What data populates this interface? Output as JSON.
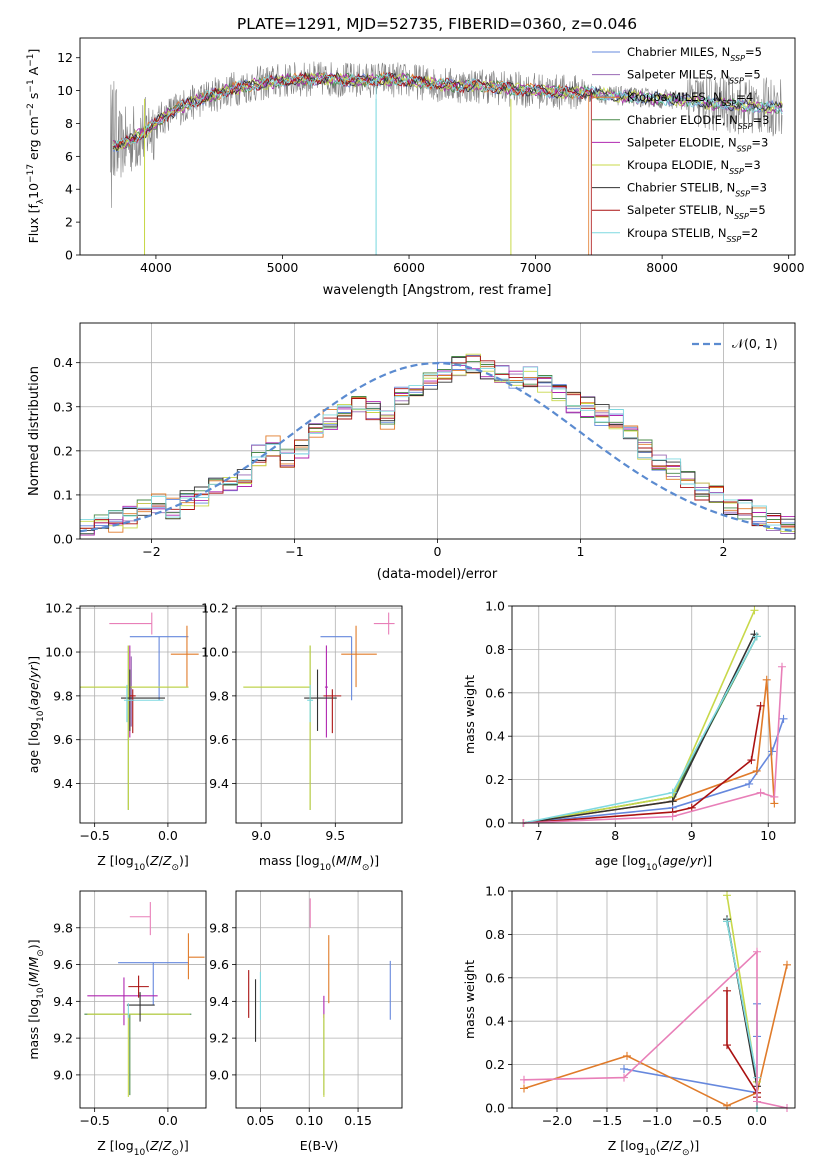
{
  "figure": {
    "title": "PLATE=1291, MJD=52735, FIBERID=0360, z=0.046"
  },
  "colors": [
    "#6688dd",
    "#9a6ab5",
    "#e07b2a",
    "#4a8a4a",
    "#b027b0",
    "#c8d84a",
    "#333333",
    "#aa1111",
    "#7fd9e0"
  ],
  "chart_data": [
    {
      "id": "spectrum",
      "type": "line",
      "title": "PLATE=1291, MJD=52735, FIBERID=0360, z=0.046",
      "xlabel": "wavelength [Angstrom, rest frame]",
      "ylabel": "Flux [f_λ 10^-17 erg cm^-2 s^-1 A^-1]",
      "xlim": [
        3400,
        9050
      ],
      "ylim": [
        0,
        13.2
      ],
      "xticks": [
        4000,
        5000,
        6000,
        7000,
        8000,
        9000
      ],
      "yticks": [
        0,
        2,
        4,
        6,
        8,
        10,
        12
      ],
      "grid": false,
      "legend_position": "right",
      "observed_series_color": "#808080",
      "continuum_anchors": {
        "x": [
          3640,
          3700,
          3800,
          3900,
          4000,
          4100,
          4200,
          4400,
          4600,
          4800,
          5000,
          5200,
          5400,
          5600,
          5800,
          6000,
          6200,
          6400,
          6600,
          6800,
          7000,
          7200,
          7400,
          7600,
          7800,
          8000,
          8200,
          8400,
          8600,
          8800,
          8950
        ],
        "y": [
          6.8,
          6.6,
          7.0,
          7.4,
          8.0,
          8.6,
          9.0,
          9.6,
          10.1,
          10.4,
          10.6,
          10.7,
          10.7,
          10.6,
          10.7,
          10.6,
          10.4,
          10.3,
          10.3,
          10.1,
          10.0,
          9.9,
          9.9,
          9.7,
          9.6,
          9.5,
          9.4,
          9.2,
          9.1,
          9.0,
          9.0
        ]
      },
      "series": [
        {
          "name": "Chabrier MILES",
          "nssp": "5"
        },
        {
          "name": "Salpeter MILES",
          "nssp": "5"
        },
        {
          "name": "Kroupa MILES",
          "nssp": "4"
        },
        {
          "name": "Chabrier ELODIE",
          "nssp": "3"
        },
        {
          "name": "Salpeter ELODIE",
          "nssp": "3"
        },
        {
          "name": "Kroupa ELODIE",
          "nssp": "3"
        },
        {
          "name": "Chabrier STELIB",
          "nssp": "3"
        },
        {
          "name": "Salpeter STELIB",
          "nssp": "5"
        },
        {
          "name": "Kroupa STELIB",
          "nssp": "2"
        }
      ],
      "legend_suffix": "N",
      "legend_sub": "SSP"
    },
    {
      "id": "residuals",
      "type": "line",
      "xlabel": "(data-model)/error",
      "ylabel": "Normed distribution",
      "xlim": [
        -2.5,
        2.5
      ],
      "ylim": [
        0,
        0.49
      ],
      "xticks": [
        -2,
        -1,
        0,
        1,
        2
      ],
      "yticks": [
        0.0,
        0.1,
        0.2,
        0.3,
        0.4
      ],
      "grid": true,
      "legend": "𝒩(0, 1)",
      "legend_position": "top-right",
      "reference_curve": {
        "mean": 0,
        "sigma": 1,
        "color": "#5b8bd0"
      },
      "histogram": {
        "bin_start": -2.5,
        "bin_width": 0.1,
        "mean_heights": [
          0.02,
          0.03,
          0.04,
          0.05,
          0.07,
          0.08,
          0.07,
          0.09,
          0.1,
          0.12,
          0.13,
          0.14,
          0.19,
          0.21,
          0.18,
          0.2,
          0.25,
          0.27,
          0.28,
          0.3,
          0.29,
          0.27,
          0.32,
          0.33,
          0.36,
          0.38,
          0.39,
          0.4,
          0.38,
          0.38,
          0.36,
          0.37,
          0.35,
          0.33,
          0.31,
          0.3,
          0.28,
          0.27,
          0.25,
          0.2,
          0.18,
          0.16,
          0.14,
          0.11,
          0.1,
          0.08,
          0.07,
          0.05,
          0.04,
          0.03
        ]
      }
    },
    {
      "id": "age-vs-z",
      "type": "scatter",
      "xlabel": "Z [log10(Z/Z⊙)]",
      "ylabel": "age  [log10(age/yr)]",
      "xlim": [
        -0.6,
        0.26
      ],
      "ylim": [
        9.22,
        10.21
      ],
      "xticks": [
        -0.5,
        0.0
      ],
      "yticks": [
        9.4,
        9.6,
        9.8,
        10.0,
        10.2
      ],
      "grid": true,
      "points": [
        {
          "series": 0,
          "x": -0.06,
          "xerr": [
            0.2,
            0.2
          ],
          "y": 10.07,
          "yerr": [
            0.29,
            0.0
          ]
        },
        {
          "series": 1,
          "x": -0.25,
          "xerr": [
            0.02,
            0.02
          ],
          "y": 9.78,
          "yerr": [
            0.12,
            0.2
          ]
        },
        {
          "series": 2,
          "x": 0.13,
          "xerr": [
            0.11,
            0.08
          ],
          "y": 9.99,
          "yerr": [
            0.15,
            0.13
          ]
        },
        {
          "series": 3,
          "x": -0.27,
          "xerr": [
            0.33,
            0.41
          ],
          "y": 9.84,
          "yerr": [
            0.56,
            0.19
          ]
        },
        {
          "series": 4,
          "x": -0.26,
          "xerr": [
            0.01,
            0.01
          ],
          "y": 9.84,
          "yerr": [
            0.23,
            0.19
          ]
        },
        {
          "series": 5,
          "x": -0.27,
          "xerr": [
            0.33,
            0.41
          ],
          "y": 9.84,
          "yerr": [
            0.56,
            0.19
          ]
        },
        {
          "series": 6,
          "x": -0.26,
          "xerr": [
            0.06,
            0.24
          ],
          "y": 9.79,
          "yerr": [
            0.15,
            0.13
          ]
        },
        {
          "series": 7,
          "x": -0.24,
          "xerr": [
            0.02,
            0.02
          ],
          "y": 9.8,
          "yerr": [
            0.17,
            0.03
          ]
        },
        {
          "series": 8,
          "x": -0.28,
          "xerr": [
            0.02,
            0.25
          ],
          "y": 9.78,
          "yerr": [
            0.1,
            0.07
          ]
        },
        {
          "series": 9,
          "x": -0.11,
          "xerr": [
            0.29,
            0.0
          ],
          "y": 10.13,
          "yerr": [
            0.05,
            0.05
          ]
        }
      ]
    },
    {
      "id": "age-vs-mass",
      "type": "scatter",
      "xlabel": "mass [log10(M/M⊙)]",
      "ylim": [
        9.22,
        10.21
      ],
      "xlim": [
        8.83,
        9.95
      ],
      "xticks": [
        9.0,
        9.5
      ],
      "yticks": [
        9.4,
        9.6,
        9.8,
        10.0,
        10.2
      ],
      "grid": true,
      "points": [
        {
          "series": 0,
          "x": 9.61,
          "xerr": [
            0.21,
            0.0
          ],
          "y": 10.07,
          "yerr": [
            0.29,
            0.0
          ]
        },
        {
          "series": 2,
          "x": 9.64,
          "xerr": [
            0.1,
            0.14
          ],
          "y": 9.99,
          "yerr": [
            0.15,
            0.13
          ]
        },
        {
          "series": 3,
          "x": 9.33,
          "xerr": [
            0.45,
            0.0
          ],
          "y": 9.84,
          "yerr": [
            0.56,
            0.19
          ]
        },
        {
          "series": 4,
          "x": 9.44,
          "xerr": [
            0.01,
            0.01
          ],
          "y": 9.84,
          "yerr": [
            0.23,
            0.19
          ]
        },
        {
          "series": 5,
          "x": 9.33,
          "xerr": [
            0.45,
            0.0
          ],
          "y": 9.84,
          "yerr": [
            0.56,
            0.19
          ]
        },
        {
          "series": 6,
          "x": 9.38,
          "xerr": [
            0.09,
            0.13
          ],
          "y": 9.79,
          "yerr": [
            0.15,
            0.13
          ]
        },
        {
          "series": 7,
          "x": 9.48,
          "xerr": [
            0.06,
            0.06
          ],
          "y": 9.8,
          "yerr": [
            0.17,
            0.03
          ]
        },
        {
          "series": 8,
          "x": 9.33,
          "xerr": [
            0.02,
            0.02
          ],
          "y": 9.78,
          "yerr": [
            0.1,
            0.07
          ]
        },
        {
          "series": 9,
          "x": 9.86,
          "xerr": [
            0.1,
            0.04
          ],
          "y": 10.13,
          "yerr": [
            0.05,
            0.05
          ]
        }
      ]
    },
    {
      "id": "weight-vs-age",
      "type": "line",
      "xlabel": "age  [log10(age/yr)]",
      "ylabel": "mass weight",
      "xlim": [
        6.65,
        10.35
      ],
      "ylim": [
        0.0,
        1.0
      ],
      "xticks": [
        7,
        8,
        9,
        10
      ],
      "yticks": [
        0.0,
        0.2,
        0.4,
        0.6,
        0.8,
        1.0
      ],
      "grid": true,
      "series": [
        {
          "series": 0,
          "x": [
            6.8,
            8.75,
            9.75,
            10.05,
            10.2
          ],
          "y": [
            0.0,
            0.07,
            0.18,
            0.33,
            0.48
          ]
        },
        {
          "series": 2,
          "x": [
            6.8,
            8.75,
            9.85,
            9.98,
            10.08
          ],
          "y": [
            0.0,
            0.1,
            0.24,
            0.66,
            0.09
          ]
        },
        {
          "series": 3,
          "x": [
            6.8,
            8.75,
            9.85
          ],
          "y": [
            0.0,
            0.12,
            0.86
          ]
        },
        {
          "series": 5,
          "x": [
            6.8,
            8.75,
            9.82
          ],
          "y": [
            0.0,
            0.12,
            0.98
          ]
        },
        {
          "series": 6,
          "x": [
            6.8,
            8.75,
            9.82
          ],
          "y": [
            0.0,
            0.1,
            0.87
          ]
        },
        {
          "series": 7,
          "x": [
            6.8,
            8.75,
            9.0,
            9.78,
            9.9
          ],
          "y": [
            0.0,
            0.05,
            0.07,
            0.29,
            0.54
          ]
        },
        {
          "series": 8,
          "x": [
            6.8,
            8.75,
            9.85
          ],
          "y": [
            0.0,
            0.14,
            0.86
          ]
        },
        {
          "series": 9,
          "x": [
            6.8,
            8.75,
            9.9,
            10.08,
            10.18
          ],
          "y": [
            0.0,
            0.03,
            0.14,
            0.12,
            0.72
          ]
        }
      ]
    },
    {
      "id": "mass-vs-z",
      "type": "scatter",
      "xlabel": "Z [log10(Z/Z⊙)]",
      "ylabel": "mass [log10(M/M⊙)]",
      "xlim": [
        -0.6,
        0.26
      ],
      "ylim": [
        8.82,
        10.0
      ],
      "xticks": [
        -0.5,
        0.0
      ],
      "yticks": [
        9.0,
        9.2,
        9.4,
        9.6,
        9.8
      ],
      "grid": true,
      "points": [
        {
          "series": 0,
          "x": -0.1,
          "xerr": [
            0.24,
            0.24
          ],
          "y": 9.61,
          "yerr": [
            0.23,
            0.0
          ]
        },
        {
          "series": 2,
          "x": 0.14,
          "xerr": [
            0.0,
            0.11
          ],
          "y": 9.64,
          "yerr": [
            0.12,
            0.13
          ]
        },
        {
          "series": 3,
          "x": -0.26,
          "xerr": [
            0.31,
            0.42
          ],
          "y": 9.33,
          "yerr": [
            0.44,
            0.0
          ]
        },
        {
          "series": 4,
          "x": -0.3,
          "xerr": [
            0.25,
            0.23
          ],
          "y": 9.43,
          "yerr": [
            0.16,
            0.1
          ]
        },
        {
          "series": 5,
          "x": -0.27,
          "xerr": [
            0.28,
            0.42
          ],
          "y": 9.33,
          "yerr": [
            0.45,
            0.0
          ]
        },
        {
          "series": 6,
          "x": -0.19,
          "xerr": [
            0.09,
            0.1
          ],
          "y": 9.38,
          "yerr": [
            0.09,
            0.07
          ]
        },
        {
          "series": 7,
          "x": -0.2,
          "xerr": [
            0.07,
            0.07
          ],
          "y": 9.48,
          "yerr": [
            0.06,
            0.06
          ]
        },
        {
          "series": 8,
          "x": -0.27,
          "xerr": [
            0.0,
            0.0
          ],
          "y": 9.35,
          "yerr": [
            0.04,
            0.04
          ]
        },
        {
          "series": 9,
          "x": -0.12,
          "xerr": [
            0.14,
            0.0
          ],
          "y": 9.86,
          "yerr": [
            0.1,
            0.08
          ]
        }
      ]
    },
    {
      "id": "mass-vs-ebv",
      "type": "scatter",
      "xlabel": "E(B-V)",
      "xlim": [
        0.025,
        0.195
      ],
      "ylim": [
        8.82,
        10.0
      ],
      "xticks": [
        0.05,
        0.1,
        0.15
      ],
      "yticks": [
        9.0,
        9.2,
        9.4,
        9.6,
        9.8
      ],
      "grid": true,
      "points": [
        {
          "series": 0,
          "x": 0.183,
          "yerr": [
            0.32,
            0.0
          ],
          "y": 9.62
        },
        {
          "series": 2,
          "x": 0.12,
          "yerr": [
            0.24,
            0.13
          ],
          "y": 9.63
        },
        {
          "series": 3,
          "x": 0.115,
          "yerr": [
            0.44,
            0.0
          ],
          "y": 9.33
        },
        {
          "series": 4,
          "x": 0.115,
          "yerr": [
            0.12,
            0.0
          ],
          "y": 9.43
        },
        {
          "series": 5,
          "x": 0.115,
          "yerr": [
            0.45,
            0.0
          ],
          "y": 9.33
        },
        {
          "series": 6,
          "x": 0.045,
          "yerr": [
            0.2,
            0.14
          ],
          "y": 9.38
        },
        {
          "series": 7,
          "x": 0.038,
          "yerr": [
            0.14,
            0.12
          ],
          "y": 9.45
        },
        {
          "series": 8,
          "x": 0.05,
          "yerr": [
            0.1,
            0.16
          ],
          "y": 9.4
        },
        {
          "series": 9,
          "x": 0.101,
          "yerr": [
            0.08,
            0.08
          ],
          "y": 9.88
        }
      ]
    },
    {
      "id": "weight-vs-z",
      "type": "line",
      "xlabel": "Z [log10(Z/Z⊙)]",
      "ylabel": "mass weight",
      "xlim": [
        -2.45,
        0.38
      ],
      "ylim": [
        0.0,
        1.0
      ],
      "xticks": [
        -2.0,
        -1.5,
        -1.0,
        -0.5,
        0.0
      ],
      "yticks": [
        0.0,
        0.2,
        0.4,
        0.6,
        0.8,
        1.0
      ],
      "grid": true,
      "series": [
        {
          "series": 0,
          "x": [
            -1.33,
            0.0,
            0.0,
            0.0
          ],
          "y": [
            0.18,
            0.07,
            0.33,
            0.48
          ]
        },
        {
          "series": 2,
          "x": [
            -2.33,
            -1.3,
            -0.3,
            0.0,
            0.3
          ],
          "y": [
            0.09,
            0.24,
            0.01,
            0.07,
            0.66
          ]
        },
        {
          "series": 3,
          "x": [
            -0.3,
            0.0,
            0.0
          ],
          "y": [
            0.86,
            0.12,
            0.0
          ]
        },
        {
          "series": 5,
          "x": [
            -0.3,
            0.0,
            0.0
          ],
          "y": [
            0.98,
            0.12,
            0.0
          ]
        },
        {
          "series": 6,
          "x": [
            -0.3,
            0.0,
            0.0
          ],
          "y": [
            0.87,
            0.1,
            0.0
          ]
        },
        {
          "series": 7,
          "x": [
            -0.3,
            -0.3,
            0.0,
            0.0
          ],
          "y": [
            0.54,
            0.29,
            0.07,
            0.05
          ]
        },
        {
          "series": 8,
          "x": [
            -0.3,
            0.0,
            0.0
          ],
          "y": [
            0.86,
            0.14,
            0.0
          ]
        },
        {
          "series": 9,
          "x": [
            -2.33,
            -1.33,
            0.0,
            0.0,
            0.3
          ],
          "y": [
            0.13,
            0.14,
            0.72,
            0.03,
            0.0
          ]
        }
      ]
    }
  ]
}
